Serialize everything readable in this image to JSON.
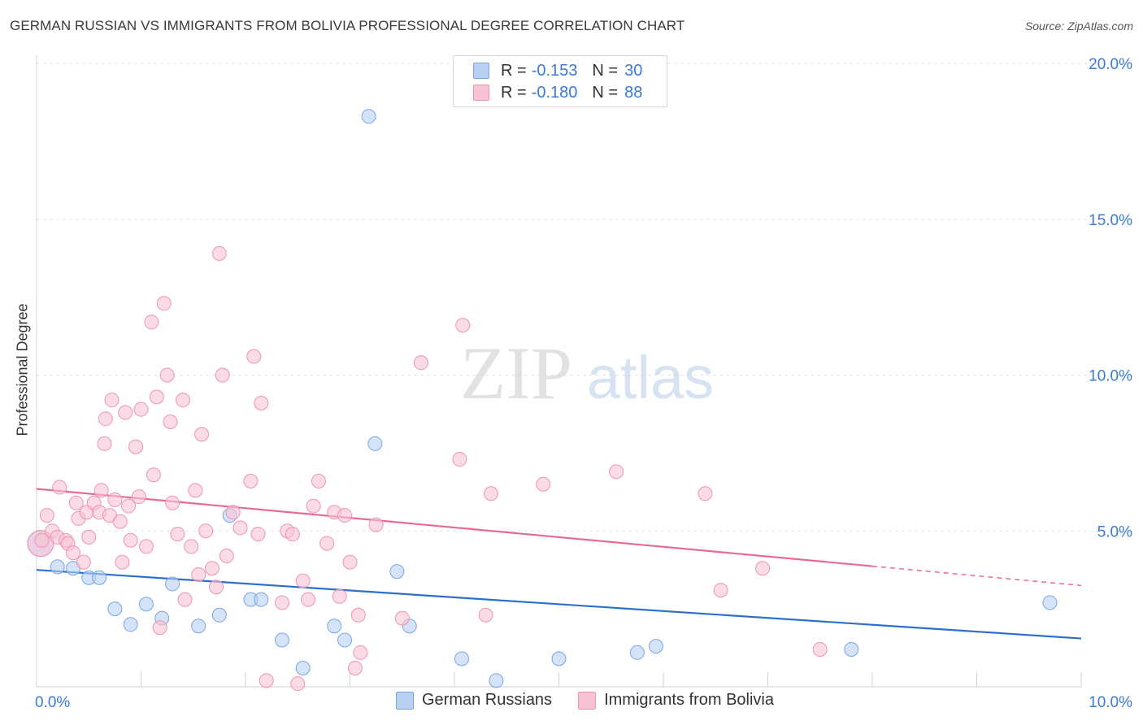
{
  "title": "GERMAN RUSSIAN VS IMMIGRANTS FROM BOLIVIA PROFESSIONAL DEGREE CORRELATION CHART",
  "source": "Source: ZipAtlas.com",
  "watermark": {
    "zip": "ZIP",
    "atlas": "atlas"
  },
  "legend": {
    "rows": [
      {
        "r_label": "R =",
        "r_value": "-0.153",
        "n_label": "N =",
        "n_value": "30"
      },
      {
        "r_label": "R =",
        "r_value": "-0.180",
        "n_label": "N =",
        "n_value": "88"
      }
    ]
  },
  "bottom_legend": {
    "series1": "German Russians",
    "series2": "Immigrants from Bolivia"
  },
  "colors": {
    "blue_fill": "#b8d1f3",
    "blue_stroke": "#7aa6e0",
    "blue_line": "#2b6fce",
    "pink_fill": "#f9c3d4",
    "pink_stroke": "#ee94b1",
    "pink_line": "#e86a93",
    "axis_text": "#3a7bd5"
  },
  "chart_data": {
    "type": "scatter",
    "title": "GERMAN RUSSIAN VS IMMIGRANTS FROM BOLIVIA PROFESSIONAL DEGREE CORRELATION CHART",
    "xlabel": "",
    "ylabel": "Professional Degree",
    "xlim": [
      0,
      10
    ],
    "ylim": [
      0,
      20
    ],
    "x_tick_labels": [
      "0.0%",
      "10.0%"
    ],
    "y_tick_labels": [
      "5.0%",
      "10.0%",
      "15.0%",
      "20.0%"
    ],
    "y_ticks": [
      5,
      10,
      15,
      20
    ],
    "series": [
      {
        "name": "German Russians",
        "color": "blue",
        "trend": {
          "x": [
            0,
            10
          ],
          "y": [
            3.75,
            1.55
          ],
          "solid_until": 10
        },
        "points": [
          [
            0.0,
            4.6
          ],
          [
            0.2,
            3.85
          ],
          [
            0.35,
            3.8
          ],
          [
            0.5,
            3.5
          ],
          [
            0.6,
            3.5
          ],
          [
            0.75,
            2.5
          ],
          [
            0.9,
            2.0
          ],
          [
            1.05,
            2.65
          ],
          [
            1.2,
            2.2
          ],
          [
            1.3,
            3.3
          ],
          [
            1.55,
            1.95
          ],
          [
            1.75,
            2.3
          ],
          [
            1.85,
            5.5
          ],
          [
            2.05,
            2.8
          ],
          [
            2.15,
            2.8
          ],
          [
            2.35,
            1.5
          ],
          [
            2.55,
            0.6
          ],
          [
            2.85,
            1.95
          ],
          [
            2.95,
            1.5
          ],
          [
            3.18,
            18.3
          ],
          [
            3.24,
            7.8
          ],
          [
            3.45,
            3.7
          ],
          [
            3.57,
            1.95
          ],
          [
            4.07,
            0.9
          ],
          [
            4.4,
            0.2
          ],
          [
            5.0,
            0.9
          ],
          [
            5.75,
            1.1
          ],
          [
            5.93,
            1.3
          ],
          [
            7.8,
            1.2
          ],
          [
            9.7,
            2.7
          ]
        ]
      },
      {
        "name": "Immigrants from Bolivia",
        "color": "pink",
        "trend": {
          "x": [
            0,
            10
          ],
          "y": [
            6.35,
            3.25
          ],
          "solid_until": 8.0
        },
        "points": [
          [
            0.0,
            4.6
          ],
          [
            0.05,
            4.7
          ],
          [
            0.1,
            5.5
          ],
          [
            0.15,
            5.0
          ],
          [
            0.2,
            4.8
          ],
          [
            0.22,
            6.4
          ],
          [
            0.28,
            4.7
          ],
          [
            0.3,
            4.6
          ],
          [
            0.35,
            4.3
          ],
          [
            0.38,
            5.9
          ],
          [
            0.4,
            5.4
          ],
          [
            0.45,
            4.0
          ],
          [
            0.48,
            5.6
          ],
          [
            0.5,
            4.8
          ],
          [
            0.55,
            5.9
          ],
          [
            0.6,
            5.6
          ],
          [
            0.62,
            6.3
          ],
          [
            0.65,
            7.8
          ],
          [
            0.66,
            8.6
          ],
          [
            0.7,
            5.5
          ],
          [
            0.72,
            9.2
          ],
          [
            0.75,
            6.0
          ],
          [
            0.8,
            5.3
          ],
          [
            0.82,
            4.0
          ],
          [
            0.85,
            8.8
          ],
          [
            0.88,
            5.8
          ],
          [
            0.9,
            4.7
          ],
          [
            0.95,
            7.7
          ],
          [
            0.98,
            6.1
          ],
          [
            1.0,
            8.9
          ],
          [
            1.05,
            4.5
          ],
          [
            1.1,
            11.7
          ],
          [
            1.12,
            6.8
          ],
          [
            1.15,
            9.3
          ],
          [
            1.18,
            1.9
          ],
          [
            1.22,
            12.3
          ],
          [
            1.25,
            10.0
          ],
          [
            1.28,
            8.5
          ],
          [
            1.3,
            5.9
          ],
          [
            1.35,
            4.9
          ],
          [
            1.4,
            9.2
          ],
          [
            1.42,
            2.8
          ],
          [
            1.48,
            4.5
          ],
          [
            1.52,
            6.3
          ],
          [
            1.55,
            3.6
          ],
          [
            1.58,
            8.1
          ],
          [
            1.62,
            5.0
          ],
          [
            1.68,
            3.8
          ],
          [
            1.72,
            3.2
          ],
          [
            1.75,
            13.9
          ],
          [
            1.78,
            10.0
          ],
          [
            1.82,
            4.2
          ],
          [
            1.88,
            5.6
          ],
          [
            1.95,
            5.1
          ],
          [
            2.05,
            6.6
          ],
          [
            2.08,
            10.6
          ],
          [
            2.12,
            4.9
          ],
          [
            2.15,
            9.1
          ],
          [
            2.2,
            0.2
          ],
          [
            2.35,
            2.7
          ],
          [
            2.4,
            5.0
          ],
          [
            2.45,
            4.9
          ],
          [
            2.5,
            0.1
          ],
          [
            2.55,
            3.4
          ],
          [
            2.6,
            2.8
          ],
          [
            2.65,
            5.8
          ],
          [
            2.7,
            6.6
          ],
          [
            2.78,
            4.6
          ],
          [
            2.85,
            5.6
          ],
          [
            2.9,
            2.9
          ],
          [
            2.95,
            5.5
          ],
          [
            3.0,
            4.0
          ],
          [
            3.05,
            0.6
          ],
          [
            3.08,
            2.3
          ],
          [
            3.1,
            1.1
          ],
          [
            3.25,
            5.2
          ],
          [
            3.5,
            2.2
          ],
          [
            3.68,
            10.4
          ],
          [
            4.05,
            7.3
          ],
          [
            4.08,
            11.6
          ],
          [
            4.3,
            2.3
          ],
          [
            4.35,
            6.2
          ],
          [
            4.85,
            6.5
          ],
          [
            5.55,
            6.9
          ],
          [
            6.4,
            6.2
          ],
          [
            6.55,
            3.1
          ],
          [
            6.95,
            3.8
          ],
          [
            7.5,
            1.2
          ]
        ]
      }
    ]
  }
}
